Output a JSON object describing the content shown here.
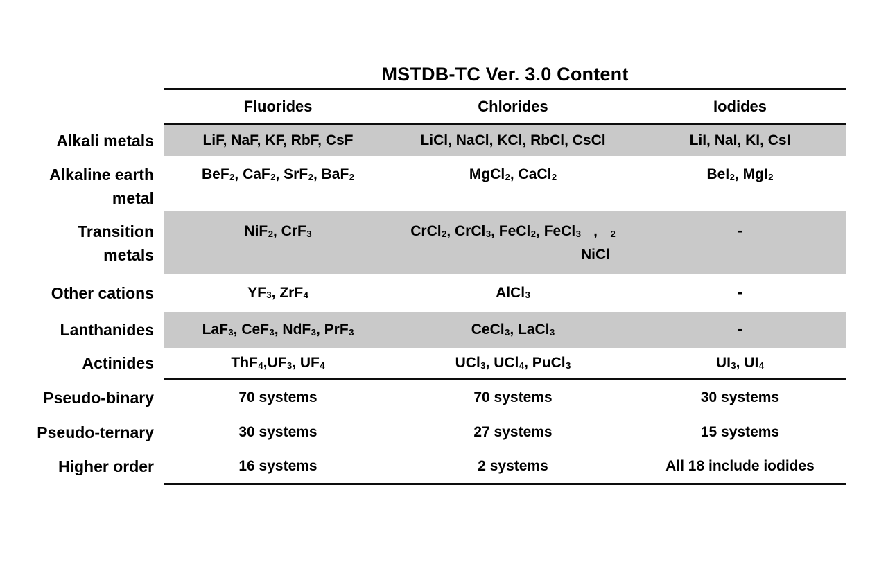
{
  "table": {
    "title": "MSTDB-TC Ver. 3.0 Content",
    "columns": [
      "Fluorides",
      "Chlorides",
      "Iodides"
    ],
    "shaded_band_color": "#c9c9c9",
    "rule_color": "#0d0d0d",
    "rows": [
      {
        "label": "Alkali metals",
        "shaded": true,
        "fluorides": "LiF, NaF, KF, RbF, CsF",
        "chlorides": "LiCl, NaCl, KCl, RbCl, CsCl",
        "iodides": "LiI, NaI, KI, CsI"
      },
      {
        "label": "Alkaline earth\nmetal",
        "shaded": false,
        "fluorides": "BeF_2, CaF_2, SrF_2, BaF_2",
        "chlorides": "MgCl_2, CaCl_2",
        "iodides": "BeI_2, MgI_2"
      },
      {
        "label": "Transition\nmetals",
        "shaded": true,
        "fluorides": "NiF_2, CrF_3",
        "chlorides": "CrCl_2, CrCl_3, FeCl_2, FeCl_3,\nNiCl_2",
        "iodides": "-"
      },
      {
        "label": "Other cations",
        "shaded": false,
        "fluorides": "YF_3, ZrF_4",
        "chlorides": "AlCl_3",
        "iodides": "-"
      },
      {
        "label": "Lanthanides",
        "shaded": true,
        "fluorides": "LaF_3, CeF_3, NdF_3, PrF_3",
        "chlorides": "CeCl_3, LaCl_3",
        "iodides": "-"
      },
      {
        "label": "Actinides",
        "shaded": false,
        "fluorides": "ThF_4,UF_3, UF_4",
        "chlorides": "UCl_3, UCl_4, PuCl_3",
        "iodides": "UI_3, UI_4"
      },
      {
        "label": "Pseudo-binary",
        "shaded": false,
        "fluorides": "70 systems",
        "chlorides": "70 systems",
        "iodides": "30 systems"
      },
      {
        "label": "Pseudo-ternary",
        "shaded": false,
        "fluorides": "30 systems",
        "chlorides": "27 systems",
        "iodides": "15 systems"
      },
      {
        "label": "Higher order",
        "shaded": false,
        "fluorides": "16 systems",
        "chlorides": "2 systems",
        "iodides": "All 18 include iodides"
      }
    ]
  }
}
